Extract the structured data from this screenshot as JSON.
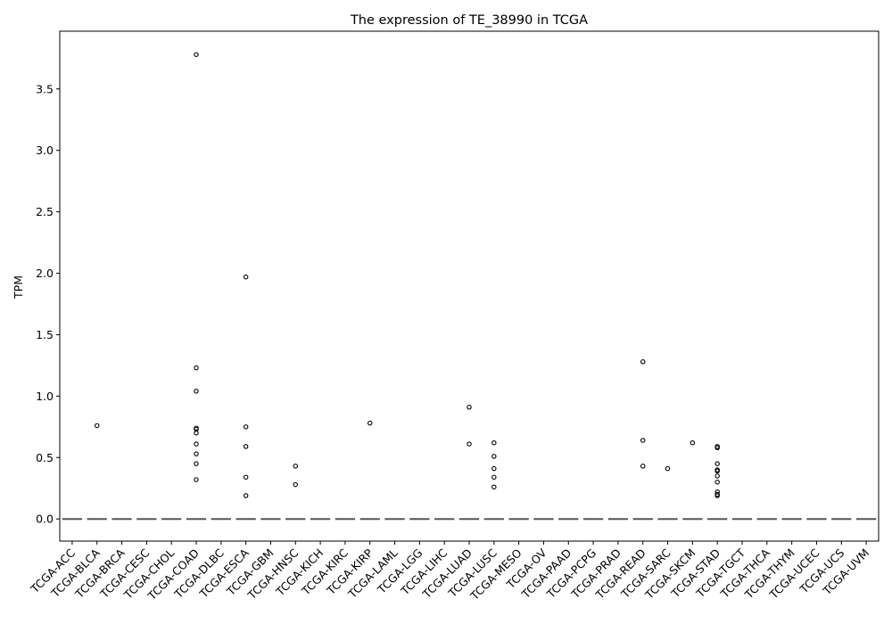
{
  "chart_data": {
    "type": "boxplot",
    "title": "The expression of TE_38990 in TCGA",
    "xlabel": "",
    "ylabel": "TPM",
    "ylim": [
      -0.18,
      3.97
    ],
    "yticks": [
      0.0,
      0.5,
      1.0,
      1.5,
      2.0,
      2.5,
      3.0,
      3.5
    ],
    "ytick_labels": [
      "0.0",
      "0.5",
      "1.0",
      "1.5",
      "2.0",
      "2.5",
      "3.0",
      "3.5"
    ],
    "grid": false,
    "categories": [
      "TCGA-ACC",
      "TCGA-BLCA",
      "TCGA-BRCA",
      "TCGA-CESC",
      "TCGA-CHOL",
      "TCGA-COAD",
      "TCGA-DLBC",
      "TCGA-ESCA",
      "TCGA-GBM",
      "TCGA-HNSC",
      "TCGA-KICH",
      "TCGA-KIRC",
      "TCGA-KIRP",
      "TCGA-LAML",
      "TCGA-LGG",
      "TCGA-LIHC",
      "TCGA-LUAD",
      "TCGA-LUSC",
      "TCGA-MESO",
      "TCGA-OV",
      "TCGA-PAAD",
      "TCGA-PCPG",
      "TCGA-PRAD",
      "TCGA-READ",
      "TCGA-SARC",
      "TCGA-SKCM",
      "TCGA-STAD",
      "TCGA-TGCT",
      "TCGA-THCA",
      "TCGA-THYM",
      "TCGA-UCEC",
      "TCGA-UCS",
      "TCGA-UVM"
    ],
    "median": [
      0,
      0,
      0,
      0,
      0,
      0,
      0,
      0,
      0,
      0,
      0,
      0,
      0,
      0,
      0,
      0,
      0,
      0,
      0,
      0,
      0,
      0,
      0,
      0,
      0,
      0,
      0,
      0,
      0,
      0,
      0,
      0,
      0
    ],
    "outliers": [
      [],
      [
        0.76
      ],
      [],
      [],
      [],
      [
        3.78,
        1.23,
        1.04,
        0.74,
        0.73,
        0.7,
        0.61,
        0.53,
        0.45,
        0.32
      ],
      [],
      [
        1.97,
        0.75,
        0.59,
        0.34,
        0.19
      ],
      [],
      [
        0.43,
        0.28
      ],
      [],
      [],
      [
        0.78
      ],
      [],
      [],
      [],
      [
        0.91,
        0.61
      ],
      [
        0.62,
        0.51,
        0.41,
        0.34,
        0.26
      ],
      [],
      [],
      [],
      [],
      [],
      [
        1.28,
        0.64,
        0.43
      ],
      [
        0.41
      ],
      [
        0.62
      ],
      [
        0.59,
        0.58,
        0.45,
        0.4,
        0.39,
        0.35,
        0.3,
        0.22,
        0.2,
        0.19
      ],
      [],
      [],
      [],
      [],
      [],
      []
    ],
    "colors": {
      "median_line": "#555555",
      "outlier_stroke": "#000000",
      "axis": "#000000"
    }
  }
}
